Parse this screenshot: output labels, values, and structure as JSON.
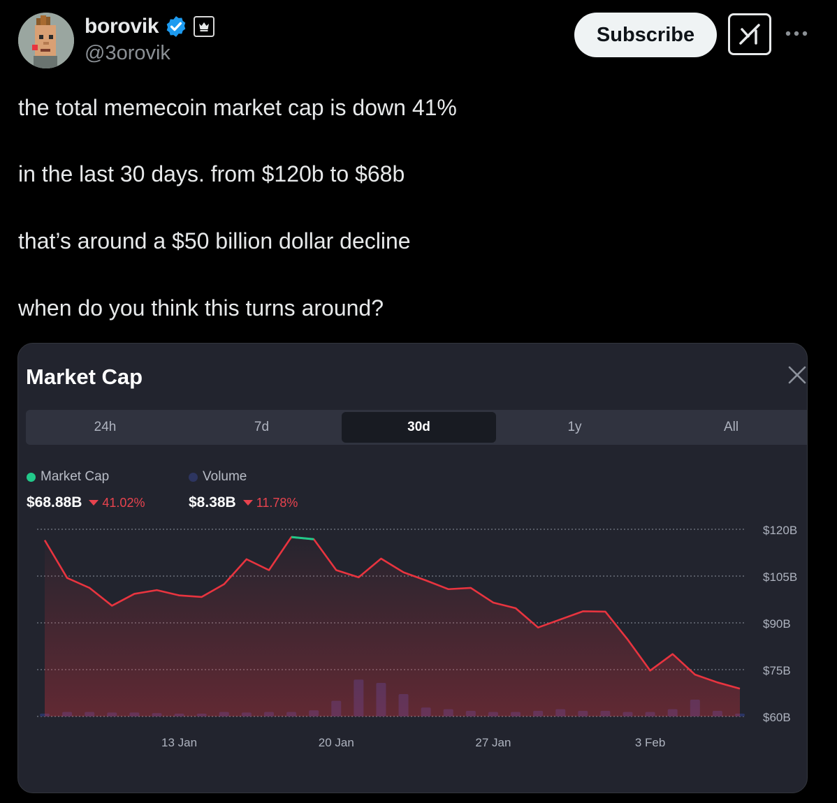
{
  "tweet": {
    "author_name": "borovik",
    "author_handle": "@3orovik",
    "subscribe_label": "Subscribe",
    "lines": [
      "the total memecoin market cap is down 41%",
      "in the last 30 days. from $120b to $68b",
      "that’s around a $50 billion dollar decline",
      "when do you think this turns around?"
    ]
  },
  "icons": {
    "verified": "verified-badge-icon",
    "affiliate": "crown-affiliate-icon",
    "grok": "grok-icon",
    "more": "more-icon",
    "close": "close-icon"
  },
  "card": {
    "title": "Market Cap",
    "tabs": [
      {
        "label": "24h",
        "active": false
      },
      {
        "label": "7d",
        "active": false
      },
      {
        "label": "30d",
        "active": true
      },
      {
        "label": "1y",
        "active": false
      },
      {
        "label": "All",
        "active": false
      }
    ],
    "legend": [
      {
        "name": "Market Cap",
        "value": "$68.88B",
        "change": "41.02%",
        "color": "#22c98a"
      },
      {
        "name": "Volume",
        "value": "$8.38B",
        "change": "11.78%",
        "color": "#2d3560"
      }
    ]
  },
  "colors": {
    "line": "#e8343f",
    "line_highlight": "#22c98a",
    "negative": "#e8434e",
    "volume_bar": "#2b3463",
    "card_bg": "#22242e"
  },
  "chart_data": {
    "type": "line",
    "y_ticks": [
      "$120B",
      "$105B",
      "$90B",
      "$75B",
      "$60B"
    ],
    "y_tick_values": [
      120,
      105,
      90,
      75,
      60
    ],
    "ylim": [
      60,
      120
    ],
    "x_ticks": [
      "13 Jan",
      "20 Jan",
      "27 Jan",
      "3 Feb"
    ],
    "x_tick_index": [
      6,
      13,
      20,
      27
    ],
    "grid": true,
    "series": [
      {
        "name": "Market Cap",
        "unit": "B",
        "values": [
          116.5,
          104.4,
          101.2,
          95.5,
          99.3,
          100.5,
          98.8,
          98.3,
          102.4,
          110.4,
          106.9,
          117.5,
          116.8,
          106.9,
          104.6,
          110.6,
          106.2,
          103.6,
          100.8,
          101.2,
          96.5,
          94.7,
          88.5,
          91.1,
          93.7,
          93.6,
          84.6,
          74.7,
          80.0,
          73.4,
          70.9,
          68.9
        ],
        "highlight_segment": [
          11,
          12
        ]
      },
      {
        "name": "Volume",
        "relative_heights": [
          0.05,
          0.08,
          0.08,
          0.07,
          0.07,
          0.06,
          0.05,
          0.05,
          0.08,
          0.07,
          0.08,
          0.08,
          0.11,
          0.28,
          0.66,
          0.6,
          0.4,
          0.16,
          0.13,
          0.1,
          0.08,
          0.08,
          0.1,
          0.13,
          0.1,
          0.1,
          0.08,
          0.08,
          0.13,
          0.3,
          0.1,
          0.05
        ]
      }
    ]
  }
}
